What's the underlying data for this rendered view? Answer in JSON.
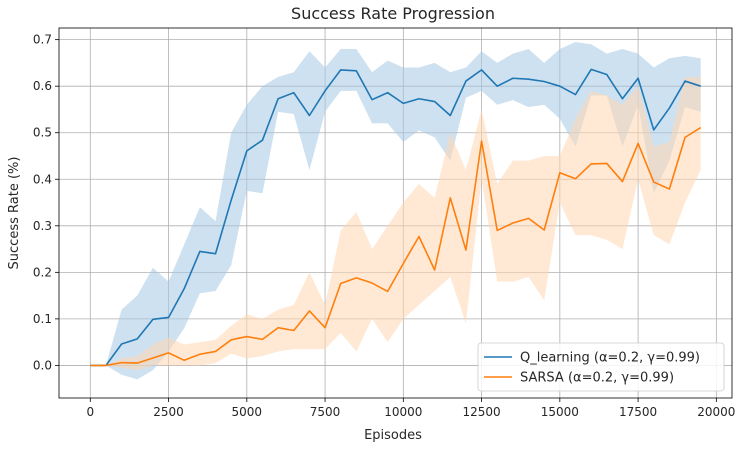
{
  "chart_data": {
    "type": "line",
    "title": "Success Rate Progression",
    "xlabel": "Episodes",
    "ylabel": "Success Rate (%)",
    "xlim": [
      -1000,
      20500
    ],
    "ylim": [
      -0.07,
      0.725
    ],
    "xticks": [
      0,
      2500,
      5000,
      7500,
      10000,
      12500,
      15000,
      17500,
      20000
    ],
    "yticks": [
      0.0,
      0.1,
      0.2,
      0.3,
      0.4,
      0.5,
      0.6,
      0.7
    ],
    "grid": true,
    "legend_position": "lower-right",
    "x": [
      0,
      500,
      1000,
      1500,
      2000,
      2500,
      3000,
      3500,
      4000,
      4500,
      5000,
      5500,
      6000,
      6500,
      7000,
      7500,
      8000,
      8500,
      9000,
      9500,
      10000,
      10500,
      11000,
      11500,
      12000,
      12500,
      13000,
      13500,
      14000,
      14500,
      15000,
      15500,
      16000,
      16500,
      17000,
      17500,
      18000,
      18500,
      19000,
      19500
    ],
    "series": [
      {
        "name": "Q_learning (α=0.2, γ=0.99)",
        "color": "#1f77b4",
        "band_color": "#a6c8e4",
        "values": [
          0.0,
          0.0,
          0.046,
          0.057,
          0.099,
          0.103,
          0.165,
          0.245,
          0.24,
          0.355,
          0.461,
          0.484,
          0.573,
          0.586,
          0.537,
          0.59,
          0.635,
          0.633,
          0.571,
          0.586,
          0.563,
          0.573,
          0.567,
          0.537,
          0.611,
          0.635,
          0.6,
          0.617,
          0.615,
          0.61,
          0.6,
          0.582,
          0.636,
          0.625,
          0.573,
          0.617,
          0.506,
          0.553,
          0.611,
          0.6
        ],
        "upper": [
          0.0,
          0.0,
          0.12,
          0.15,
          0.21,
          0.18,
          0.26,
          0.34,
          0.31,
          0.5,
          0.56,
          0.6,
          0.62,
          0.63,
          0.675,
          0.64,
          0.68,
          0.68,
          0.63,
          0.655,
          0.64,
          0.64,
          0.65,
          0.63,
          0.64,
          0.675,
          0.65,
          0.67,
          0.68,
          0.65,
          0.68,
          0.695,
          0.69,
          0.67,
          0.68,
          0.67,
          0.64,
          0.66,
          0.665,
          0.66
        ],
        "lower": [
          0.0,
          0.0,
          -0.02,
          -0.03,
          -0.01,
          0.03,
          0.08,
          0.155,
          0.16,
          0.215,
          0.375,
          0.37,
          0.545,
          0.54,
          0.42,
          0.545,
          0.59,
          0.59,
          0.52,
          0.52,
          0.48,
          0.505,
          0.49,
          0.44,
          0.575,
          0.59,
          0.56,
          0.57,
          0.555,
          0.56,
          0.53,
          0.47,
          0.58,
          0.58,
          0.47,
          0.56,
          0.37,
          0.44,
          0.555,
          0.545
        ]
      },
      {
        "name": "SARSA (α=0.2, γ=0.99)",
        "color": "#ff7f0e",
        "band_color": "#ffd7b3",
        "values": [
          0.0,
          0.0,
          0.006,
          0.005,
          0.016,
          0.027,
          0.011,
          0.024,
          0.03,
          0.055,
          0.062,
          0.056,
          0.081,
          0.075,
          0.117,
          0.081,
          0.176,
          0.188,
          0.177,
          0.159,
          0.219,
          0.277,
          0.205,
          0.36,
          0.248,
          0.482,
          0.29,
          0.306,
          0.316,
          0.291,
          0.414,
          0.401,
          0.433,
          0.434,
          0.395,
          0.477,
          0.394,
          0.379,
          0.49,
          0.511
        ],
        "upper": [
          0.0,
          0.0,
          0.015,
          0.02,
          0.045,
          0.06,
          0.045,
          0.05,
          0.055,
          0.085,
          0.11,
          0.1,
          0.12,
          0.13,
          0.2,
          0.13,
          0.29,
          0.33,
          0.25,
          0.3,
          0.35,
          0.39,
          0.36,
          0.5,
          0.42,
          0.55,
          0.39,
          0.44,
          0.44,
          0.45,
          0.45,
          0.53,
          0.59,
          0.58,
          0.56,
          0.6,
          0.47,
          0.48,
          0.62,
          0.62
        ],
        "lower": [
          0.0,
          0.0,
          -0.005,
          -0.01,
          0.0,
          0.0,
          0.0,
          0.0,
          0.005,
          0.025,
          0.015,
          0.02,
          0.03,
          0.035,
          0.035,
          0.035,
          0.07,
          0.03,
          0.1,
          0.05,
          0.1,
          0.13,
          0.16,
          0.19,
          0.09,
          0.4,
          0.18,
          0.18,
          0.19,
          0.14,
          0.35,
          0.28,
          0.28,
          0.27,
          0.25,
          0.4,
          0.28,
          0.26,
          0.35,
          0.42
        ]
      }
    ]
  }
}
